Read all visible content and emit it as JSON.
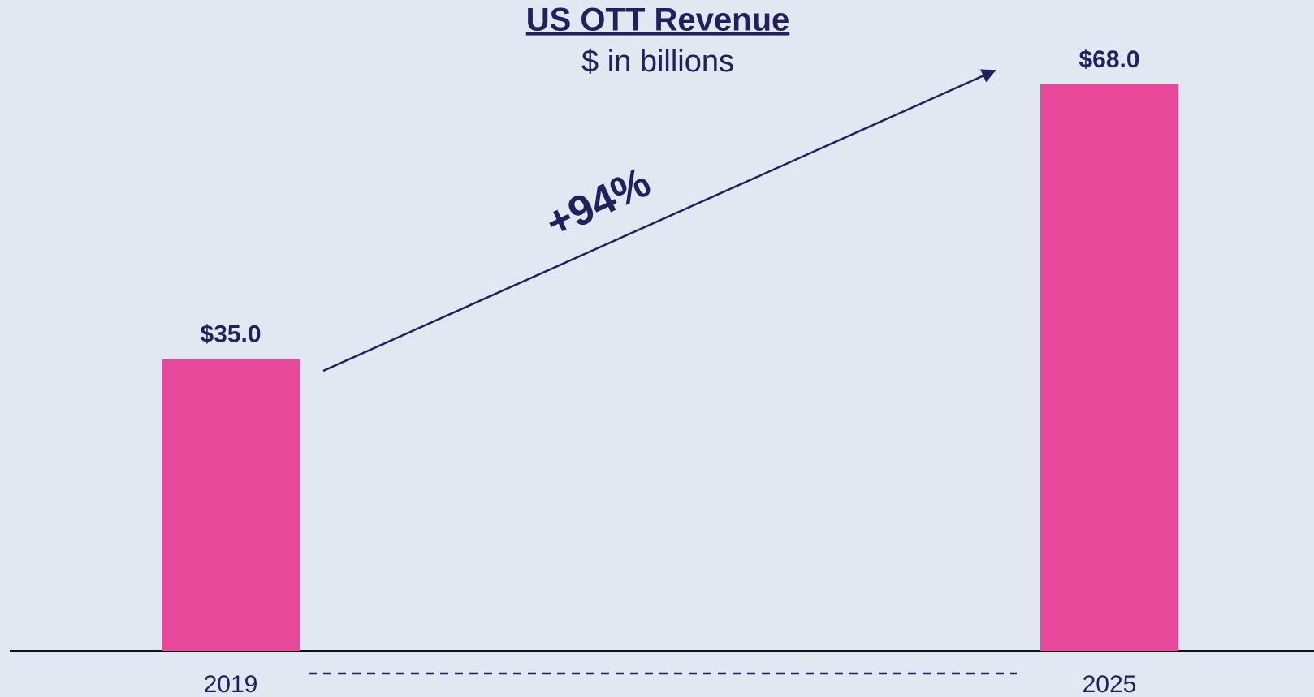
{
  "chart_data": {
    "type": "bar",
    "title": "US OTT Revenue",
    "subtitle": "$ in billions",
    "annotation": "+94%",
    "categories": [
      "2019",
      "2025"
    ],
    "values": [
      35,
      68
    ],
    "value_labels": [
      "$35.0",
      "$68.0"
    ],
    "color": "#e8489a"
  }
}
